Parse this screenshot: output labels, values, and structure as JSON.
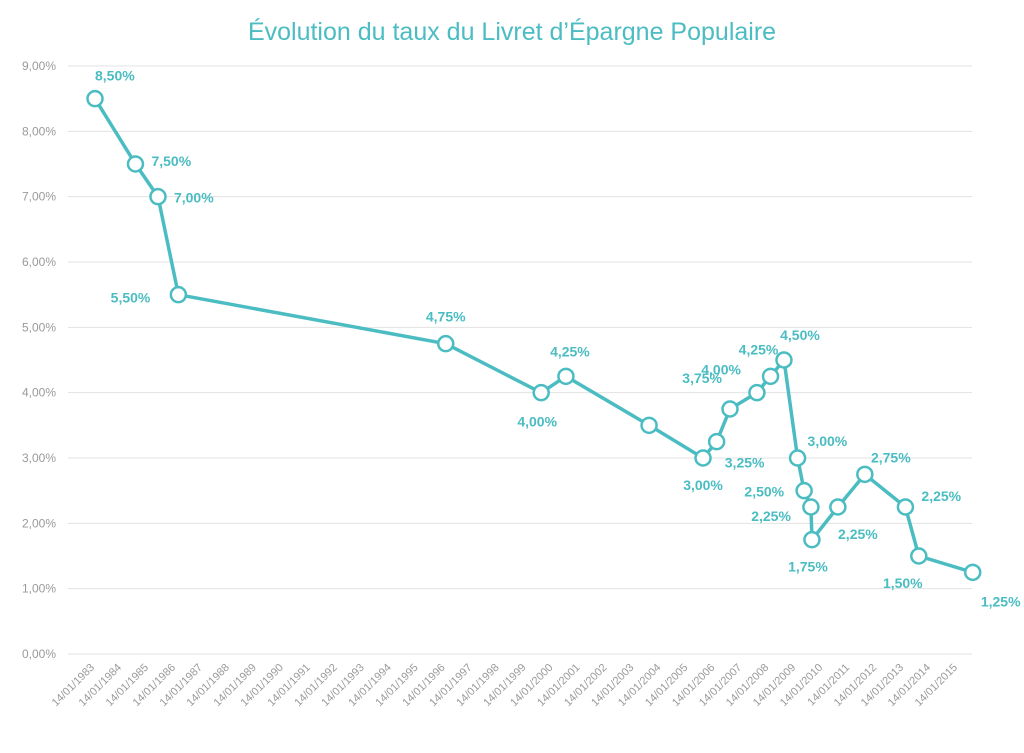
{
  "chart_data": {
    "type": "line",
    "title": "Évolution du taux du Livret d’Épargne Populaire",
    "xlabel": "",
    "ylabel": "",
    "ylim": [
      0,
      9
    ],
    "grid": true,
    "color": "#4bbdc2",
    "y_tick_labels": [
      "0,00%",
      "1,00%",
      "2,00%",
      "3,00%",
      "4,00%",
      "5,00%",
      "6,00%",
      "7,00%",
      "8,00%",
      "9,00%"
    ],
    "x_tick_labels": [
      "14/01/1983",
      "14/01/1984",
      "14/01/1985",
      "14/01/1986",
      "14/01/1987",
      "14/01/1988",
      "14/01/1989",
      "14/01/1990",
      "14/01/1991",
      "14/01/1992",
      "14/01/1993",
      "14/01/1994",
      "14/01/1995",
      "14/01/1996",
      "14/01/1997",
      "14/01/1998",
      "14/01/1999",
      "14/01/2000",
      "14/01/2001",
      "14/01/2002",
      "14/01/2003",
      "14/01/2004",
      "14/01/2005",
      "14/01/2006",
      "14/01/2007",
      "14/01/2008",
      "14/01/2009",
      "14/01/2010",
      "14/01/2011",
      "14/01/2012",
      "14/01/2013",
      "14/01/2014",
      "14/01/2015"
    ],
    "points": [
      {
        "x": "1983-01-14",
        "y": 8.5,
        "label": "8,50%"
      },
      {
        "x": "1984-07-15",
        "y": 7.5,
        "label": "7,50%"
      },
      {
        "x": "1985-05-16",
        "y": 7.0,
        "label": "7,00%"
      },
      {
        "x": "1986-02-16",
        "y": 5.5,
        "label": "5,50%"
      },
      {
        "x": "1996-01-16",
        "y": 4.75,
        "label": "4,75%"
      },
      {
        "x": "1999-08-01",
        "y": 4.0,
        "label": "4,00%"
      },
      {
        "x": "2000-07-01",
        "y": 4.25,
        "label": "4,25%"
      },
      {
        "x": "2003-08-01",
        "y": 3.5,
        "label": ""
      },
      {
        "x": "2005-08-01",
        "y": 3.0,
        "label": "3,00%"
      },
      {
        "x": "2006-02-01",
        "y": 3.25,
        "label": "3,25%"
      },
      {
        "x": "2006-08-01",
        "y": 3.75,
        "label": "3,75%"
      },
      {
        "x": "2007-08-01",
        "y": 4.0,
        "label": "4,00%"
      },
      {
        "x": "2008-02-01",
        "y": 4.25,
        "label": "4,25%"
      },
      {
        "x": "2008-08-01",
        "y": 4.5,
        "label": "4,50%"
      },
      {
        "x": "2009-02-01",
        "y": 3.0,
        "label": "3,00%"
      },
      {
        "x": "2009-05-01",
        "y": 2.5,
        "label": "2,50%"
      },
      {
        "x": "2009-08-01",
        "y": 2.25,
        "label": "2,25%"
      },
      {
        "x": "2009-08-15",
        "y": 1.75,
        "label": "1,75%"
      },
      {
        "x": "2010-08-01",
        "y": 2.25,
        "label": "2,25%"
      },
      {
        "x": "2011-08-01",
        "y": 2.75,
        "label": "2,75%"
      },
      {
        "x": "2013-02-01",
        "y": 2.25,
        "label": "2,25%"
      },
      {
        "x": "2013-08-01",
        "y": 1.5,
        "label": "1,50%"
      },
      {
        "x": "2015-08-01",
        "y": 1.25,
        "label": "1,25%"
      }
    ]
  }
}
